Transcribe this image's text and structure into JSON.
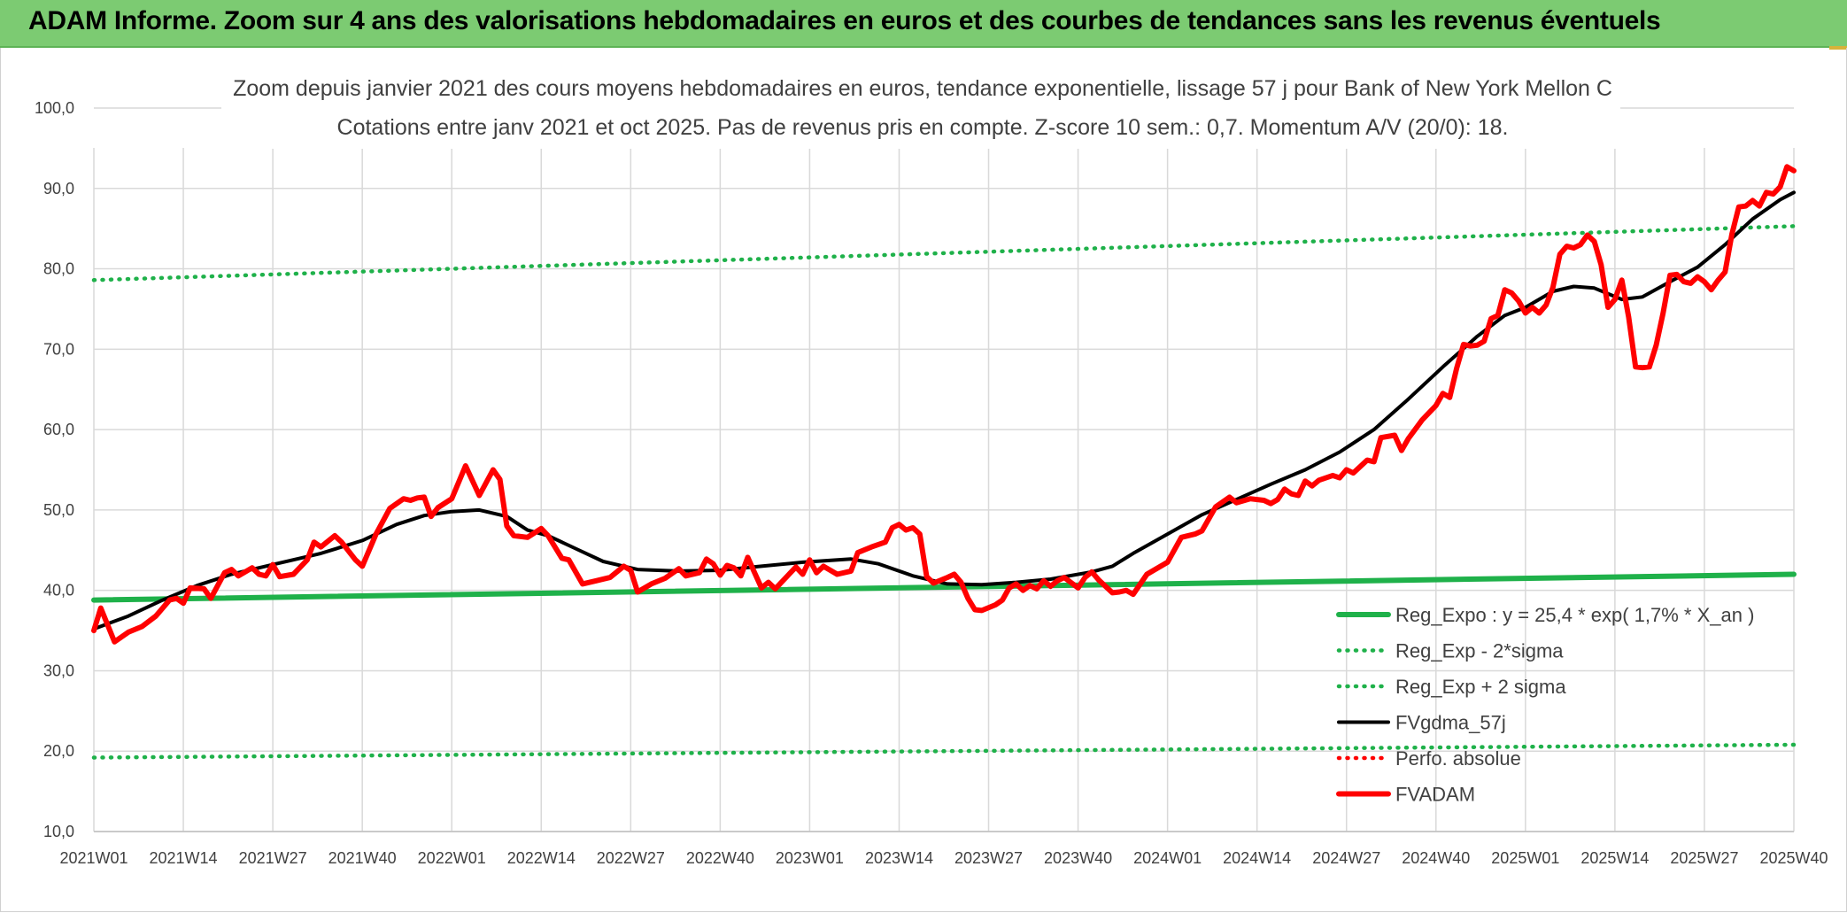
{
  "banner": {
    "title": "ADAM Informe. Zoom sur 4 ans des valorisations hebdomadaires en euros et des courbes de tendances sans les revenus éventuels"
  },
  "colors": {
    "banner_bg": "#7ccb72",
    "reg_green": "#1fb14a",
    "red": "#ff0000",
    "black": "#000000",
    "grid": "#d9d9d9"
  },
  "chart_data": {
    "type": "line",
    "title": "Zoom depuis janvier 2021 des cours moyens hebdomadaires en euros, tendance exponentielle, lissage 57 j pour Bank of New York Mellon C",
    "subtitle": "Cotations entre janv 2021 et oct 2025. Pas de revenus pris en compte. Z-score 10 sem.: 0,7. Momentum A/V (20/0): 18.",
    "xlabel": "",
    "ylabel": "",
    "ylim": [
      10,
      100
    ],
    "yticks": [
      "10,0",
      "20,0",
      "30,0",
      "40,0",
      "50,0",
      "60,0",
      "70,0",
      "80,0",
      "90,0",
      "100,0"
    ],
    "x_count": 248,
    "xticks": [
      {
        "i": 0,
        "label": "2021W01"
      },
      {
        "i": 13,
        "label": "2021W14"
      },
      {
        "i": 26,
        "label": "2021W27"
      },
      {
        "i": 39,
        "label": "2021W40"
      },
      {
        "i": 52,
        "label": "2022W01"
      },
      {
        "i": 65,
        "label": "2022W14"
      },
      {
        "i": 78,
        "label": "2022W27"
      },
      {
        "i": 91,
        "label": "2022W40"
      },
      {
        "i": 104,
        "label": "2023W01"
      },
      {
        "i": 117,
        "label": "2023W14"
      },
      {
        "i": 130,
        "label": "2023W27"
      },
      {
        "i": 143,
        "label": "2023W40"
      },
      {
        "i": 156,
        "label": "2024W01"
      },
      {
        "i": 169,
        "label": "2024W14"
      },
      {
        "i": 182,
        "label": "2024W27"
      },
      {
        "i": 195,
        "label": "2024W40"
      },
      {
        "i": 208,
        "label": "2025W01"
      },
      {
        "i": 221,
        "label": "2025W14"
      },
      {
        "i": 234,
        "label": "2025W27"
      },
      {
        "i": 247,
        "label": "2025W40"
      }
    ],
    "legend_position": "bottom-right",
    "series": [
      {
        "key": "reg",
        "name": "Reg_Expo : y = 25,4 * exp( 1,7% *  X_an )",
        "style": "solid-thick",
        "color": "#1fb14a",
        "points": [
          [
            0,
            38.8
          ],
          [
            247,
            42.0
          ]
        ]
      },
      {
        "key": "low",
        "name": "Reg_Exp - 2*sigma",
        "style": "dotted",
        "color": "#1fb14a",
        "points": [
          [
            0,
            19.2
          ],
          [
            247,
            20.8
          ]
        ]
      },
      {
        "key": "high",
        "name": "Reg_Exp + 2 sigma",
        "style": "dotted",
        "color": "#1fb14a",
        "points": [
          [
            0,
            78.6
          ],
          [
            247,
            85.3
          ]
        ]
      },
      {
        "key": "gdma",
        "name": "FVgdma_57j",
        "style": "solid",
        "color": "#000000",
        "points": [
          [
            0,
            35.2
          ],
          [
            5,
            36.8
          ],
          [
            10,
            38.8
          ],
          [
            15,
            40.6
          ],
          [
            20,
            42.0
          ],
          [
            26,
            43.2
          ],
          [
            33,
            44.6
          ],
          [
            39,
            46.2
          ],
          [
            44,
            48.2
          ],
          [
            48,
            49.3
          ],
          [
            52,
            49.8
          ],
          [
            56,
            50.0
          ],
          [
            60,
            49.2
          ],
          [
            63,
            47.5
          ],
          [
            66,
            46.8
          ],
          [
            70,
            45.2
          ],
          [
            74,
            43.6
          ],
          [
            79,
            42.6
          ],
          [
            85,
            42.4
          ],
          [
            91,
            42.5
          ],
          [
            97,
            43.0
          ],
          [
            103,
            43.5
          ],
          [
            110,
            43.9
          ],
          [
            114,
            43.3
          ],
          [
            119,
            41.8
          ],
          [
            124,
            40.8
          ],
          [
            129,
            40.7
          ],
          [
            134,
            41.0
          ],
          [
            139,
            41.4
          ],
          [
            145,
            42.3
          ],
          [
            148,
            43.0
          ],
          [
            151,
            44.6
          ],
          [
            156,
            47.0
          ],
          [
            161,
            49.4
          ],
          [
            166,
            51.3
          ],
          [
            171,
            53.2
          ],
          [
            176,
            55.0
          ],
          [
            181,
            57.2
          ],
          [
            186,
            60.0
          ],
          [
            191,
            63.8
          ],
          [
            196,
            67.8
          ],
          [
            201,
            71.6
          ],
          [
            205,
            74.2
          ],
          [
            208,
            75.2
          ],
          [
            212,
            77.2
          ],
          [
            215,
            77.8
          ],
          [
            218,
            77.6
          ],
          [
            222,
            76.2
          ],
          [
            225,
            76.5
          ],
          [
            229,
            78.4
          ],
          [
            233,
            80.2
          ],
          [
            237,
            83.0
          ],
          [
            241,
            86.2
          ],
          [
            245,
            88.6
          ],
          [
            247,
            89.5
          ]
        ]
      },
      {
        "key": "perfo",
        "name": "Perfo. absolue",
        "style": "dotted",
        "color": "#ff0000",
        "points": []
      },
      {
        "key": "fvadam",
        "name": "FVADAM",
        "style": "solid-thick",
        "color": "#ff0000",
        "points": [
          [
            0,
            35.0
          ],
          [
            1,
            37.8
          ],
          [
            3,
            33.6
          ],
          [
            5,
            34.8
          ],
          [
            7,
            35.5
          ],
          [
            9,
            36.8
          ],
          [
            11,
            38.8
          ],
          [
            12,
            39.0
          ],
          [
            13,
            38.4
          ],
          [
            14,
            40.3
          ],
          [
            16,
            40.2
          ],
          [
            17,
            39.0
          ],
          [
            19,
            42.2
          ],
          [
            20,
            42.6
          ],
          [
            21,
            41.8
          ],
          [
            23,
            42.8
          ],
          [
            24,
            42.0
          ],
          [
            25,
            41.8
          ],
          [
            26,
            43.2
          ],
          [
            27,
            41.7
          ],
          [
            29,
            42.0
          ],
          [
            31,
            43.8
          ],
          [
            32,
            46.0
          ],
          [
            33,
            45.4
          ],
          [
            35,
            46.8
          ],
          [
            36,
            46.0
          ],
          [
            38,
            43.8
          ],
          [
            39,
            43.0
          ],
          [
            41,
            47.0
          ],
          [
            43,
            50.2
          ],
          [
            45,
            51.4
          ],
          [
            46,
            51.2
          ],
          [
            47,
            51.5
          ],
          [
            48,
            51.6
          ],
          [
            49,
            49.2
          ],
          [
            50,
            50.3
          ],
          [
            52,
            51.4
          ],
          [
            54,
            55.5
          ],
          [
            56,
            51.8
          ],
          [
            58,
            55.0
          ],
          [
            59,
            53.8
          ],
          [
            60,
            48.0
          ],
          [
            61,
            46.8
          ],
          [
            63,
            46.6
          ],
          [
            65,
            47.7
          ],
          [
            66,
            46.8
          ],
          [
            68,
            44.0
          ],
          [
            69,
            43.8
          ],
          [
            71,
            40.8
          ],
          [
            73,
            41.2
          ],
          [
            75,
            41.6
          ],
          [
            77,
            43.0
          ],
          [
            78,
            42.5
          ],
          [
            79,
            39.8
          ],
          [
            81,
            40.8
          ],
          [
            83,
            41.5
          ],
          [
            85,
            42.7
          ],
          [
            86,
            41.8
          ],
          [
            88,
            42.2
          ],
          [
            89,
            43.9
          ],
          [
            90,
            43.3
          ],
          [
            91,
            41.9
          ],
          [
            92,
            43.1
          ],
          [
            93,
            42.8
          ],
          [
            94,
            41.8
          ],
          [
            95,
            44.1
          ],
          [
            96,
            42.2
          ],
          [
            97,
            40.3
          ],
          [
            98,
            41.0
          ],
          [
            99,
            40.2
          ],
          [
            101,
            42.0
          ],
          [
            102,
            42.9
          ],
          [
            103,
            42.0
          ],
          [
            104,
            43.8
          ],
          [
            105,
            42.2
          ],
          [
            106,
            43.0
          ],
          [
            108,
            42.0
          ],
          [
            110,
            42.4
          ],
          [
            111,
            44.7
          ],
          [
            113,
            45.4
          ],
          [
            115,
            46.0
          ],
          [
            116,
            47.8
          ],
          [
            117,
            48.2
          ],
          [
            118,
            47.5
          ],
          [
            119,
            47.8
          ],
          [
            120,
            47.0
          ],
          [
            121,
            41.7
          ],
          [
            122,
            40.9
          ],
          [
            124,
            41.6
          ],
          [
            125,
            42.0
          ],
          [
            126,
            41.0
          ],
          [
            127,
            39.0
          ],
          [
            128,
            37.6
          ],
          [
            129,
            37.5
          ],
          [
            131,
            38.2
          ],
          [
            132,
            38.8
          ],
          [
            133,
            40.3
          ],
          [
            134,
            40.8
          ],
          [
            135,
            40.0
          ],
          [
            136,
            40.6
          ],
          [
            137,
            40.2
          ],
          [
            138,
            41.2
          ],
          [
            139,
            40.5
          ],
          [
            140,
            41.2
          ],
          [
            141,
            41.6
          ],
          [
            143,
            40.3
          ],
          [
            144,
            41.6
          ],
          [
            145,
            42.3
          ],
          [
            146,
            41.3
          ],
          [
            148,
            39.7
          ],
          [
            149,
            39.8
          ],
          [
            150,
            40.0
          ],
          [
            151,
            39.5
          ],
          [
            153,
            42.0
          ],
          [
            155,
            43.0
          ],
          [
            156,
            43.5
          ],
          [
            158,
            46.6
          ],
          [
            160,
            47.0
          ],
          [
            161,
            47.4
          ],
          [
            163,
            50.4
          ],
          [
            165,
            51.6
          ],
          [
            166,
            50.9
          ],
          [
            168,
            51.4
          ],
          [
            170,
            51.2
          ],
          [
            171,
            50.8
          ],
          [
            172,
            51.3
          ],
          [
            173,
            52.6
          ],
          [
            174,
            52.0
          ],
          [
            175,
            51.8
          ],
          [
            176,
            53.6
          ],
          [
            177,
            53.0
          ],
          [
            178,
            53.7
          ],
          [
            180,
            54.3
          ],
          [
            181,
            54.0
          ],
          [
            182,
            55.0
          ],
          [
            183,
            54.6
          ],
          [
            185,
            56.2
          ],
          [
            186,
            56.0
          ],
          [
            187,
            59.0
          ],
          [
            189,
            59.3
          ],
          [
            190,
            57.4
          ],
          [
            191,
            58.9
          ],
          [
            193,
            61.2
          ],
          [
            195,
            63.0
          ],
          [
            196,
            64.5
          ],
          [
            197,
            64.0
          ],
          [
            198,
            67.6
          ],
          [
            199,
            70.6
          ],
          [
            200,
            70.4
          ],
          [
            201,
            70.5
          ],
          [
            202,
            71.0
          ],
          [
            203,
            73.8
          ],
          [
            204,
            74.2
          ],
          [
            205,
            77.4
          ],
          [
            206,
            77.0
          ],
          [
            207,
            76.0
          ],
          [
            208,
            74.5
          ],
          [
            209,
            75.2
          ],
          [
            210,
            74.5
          ],
          [
            211,
            75.5
          ],
          [
            212,
            77.7
          ],
          [
            213,
            81.8
          ],
          [
            214,
            82.8
          ],
          [
            215,
            82.6
          ],
          [
            216,
            83.0
          ],
          [
            217,
            84.2
          ],
          [
            218,
            83.4
          ],
          [
            219,
            80.5
          ],
          [
            220,
            75.2
          ],
          [
            221,
            76.2
          ],
          [
            222,
            78.6
          ],
          [
            223,
            74.0
          ],
          [
            224,
            67.8
          ],
          [
            225,
            67.7
          ],
          [
            226,
            67.8
          ],
          [
            227,
            70.5
          ],
          [
            228,
            74.5
          ],
          [
            229,
            79.2
          ],
          [
            230,
            79.3
          ],
          [
            231,
            78.4
          ],
          [
            232,
            78.2
          ],
          [
            233,
            79.0
          ],
          [
            234,
            78.4
          ],
          [
            235,
            77.4
          ],
          [
            236,
            78.6
          ],
          [
            237,
            79.6
          ],
          [
            238,
            84.3
          ],
          [
            239,
            87.7
          ],
          [
            240,
            87.8
          ],
          [
            241,
            88.5
          ],
          [
            242,
            87.8
          ],
          [
            243,
            89.5
          ],
          [
            244,
            89.3
          ],
          [
            245,
            90.2
          ],
          [
            246,
            92.7
          ],
          [
            247,
            92.2
          ]
        ]
      }
    ]
  }
}
